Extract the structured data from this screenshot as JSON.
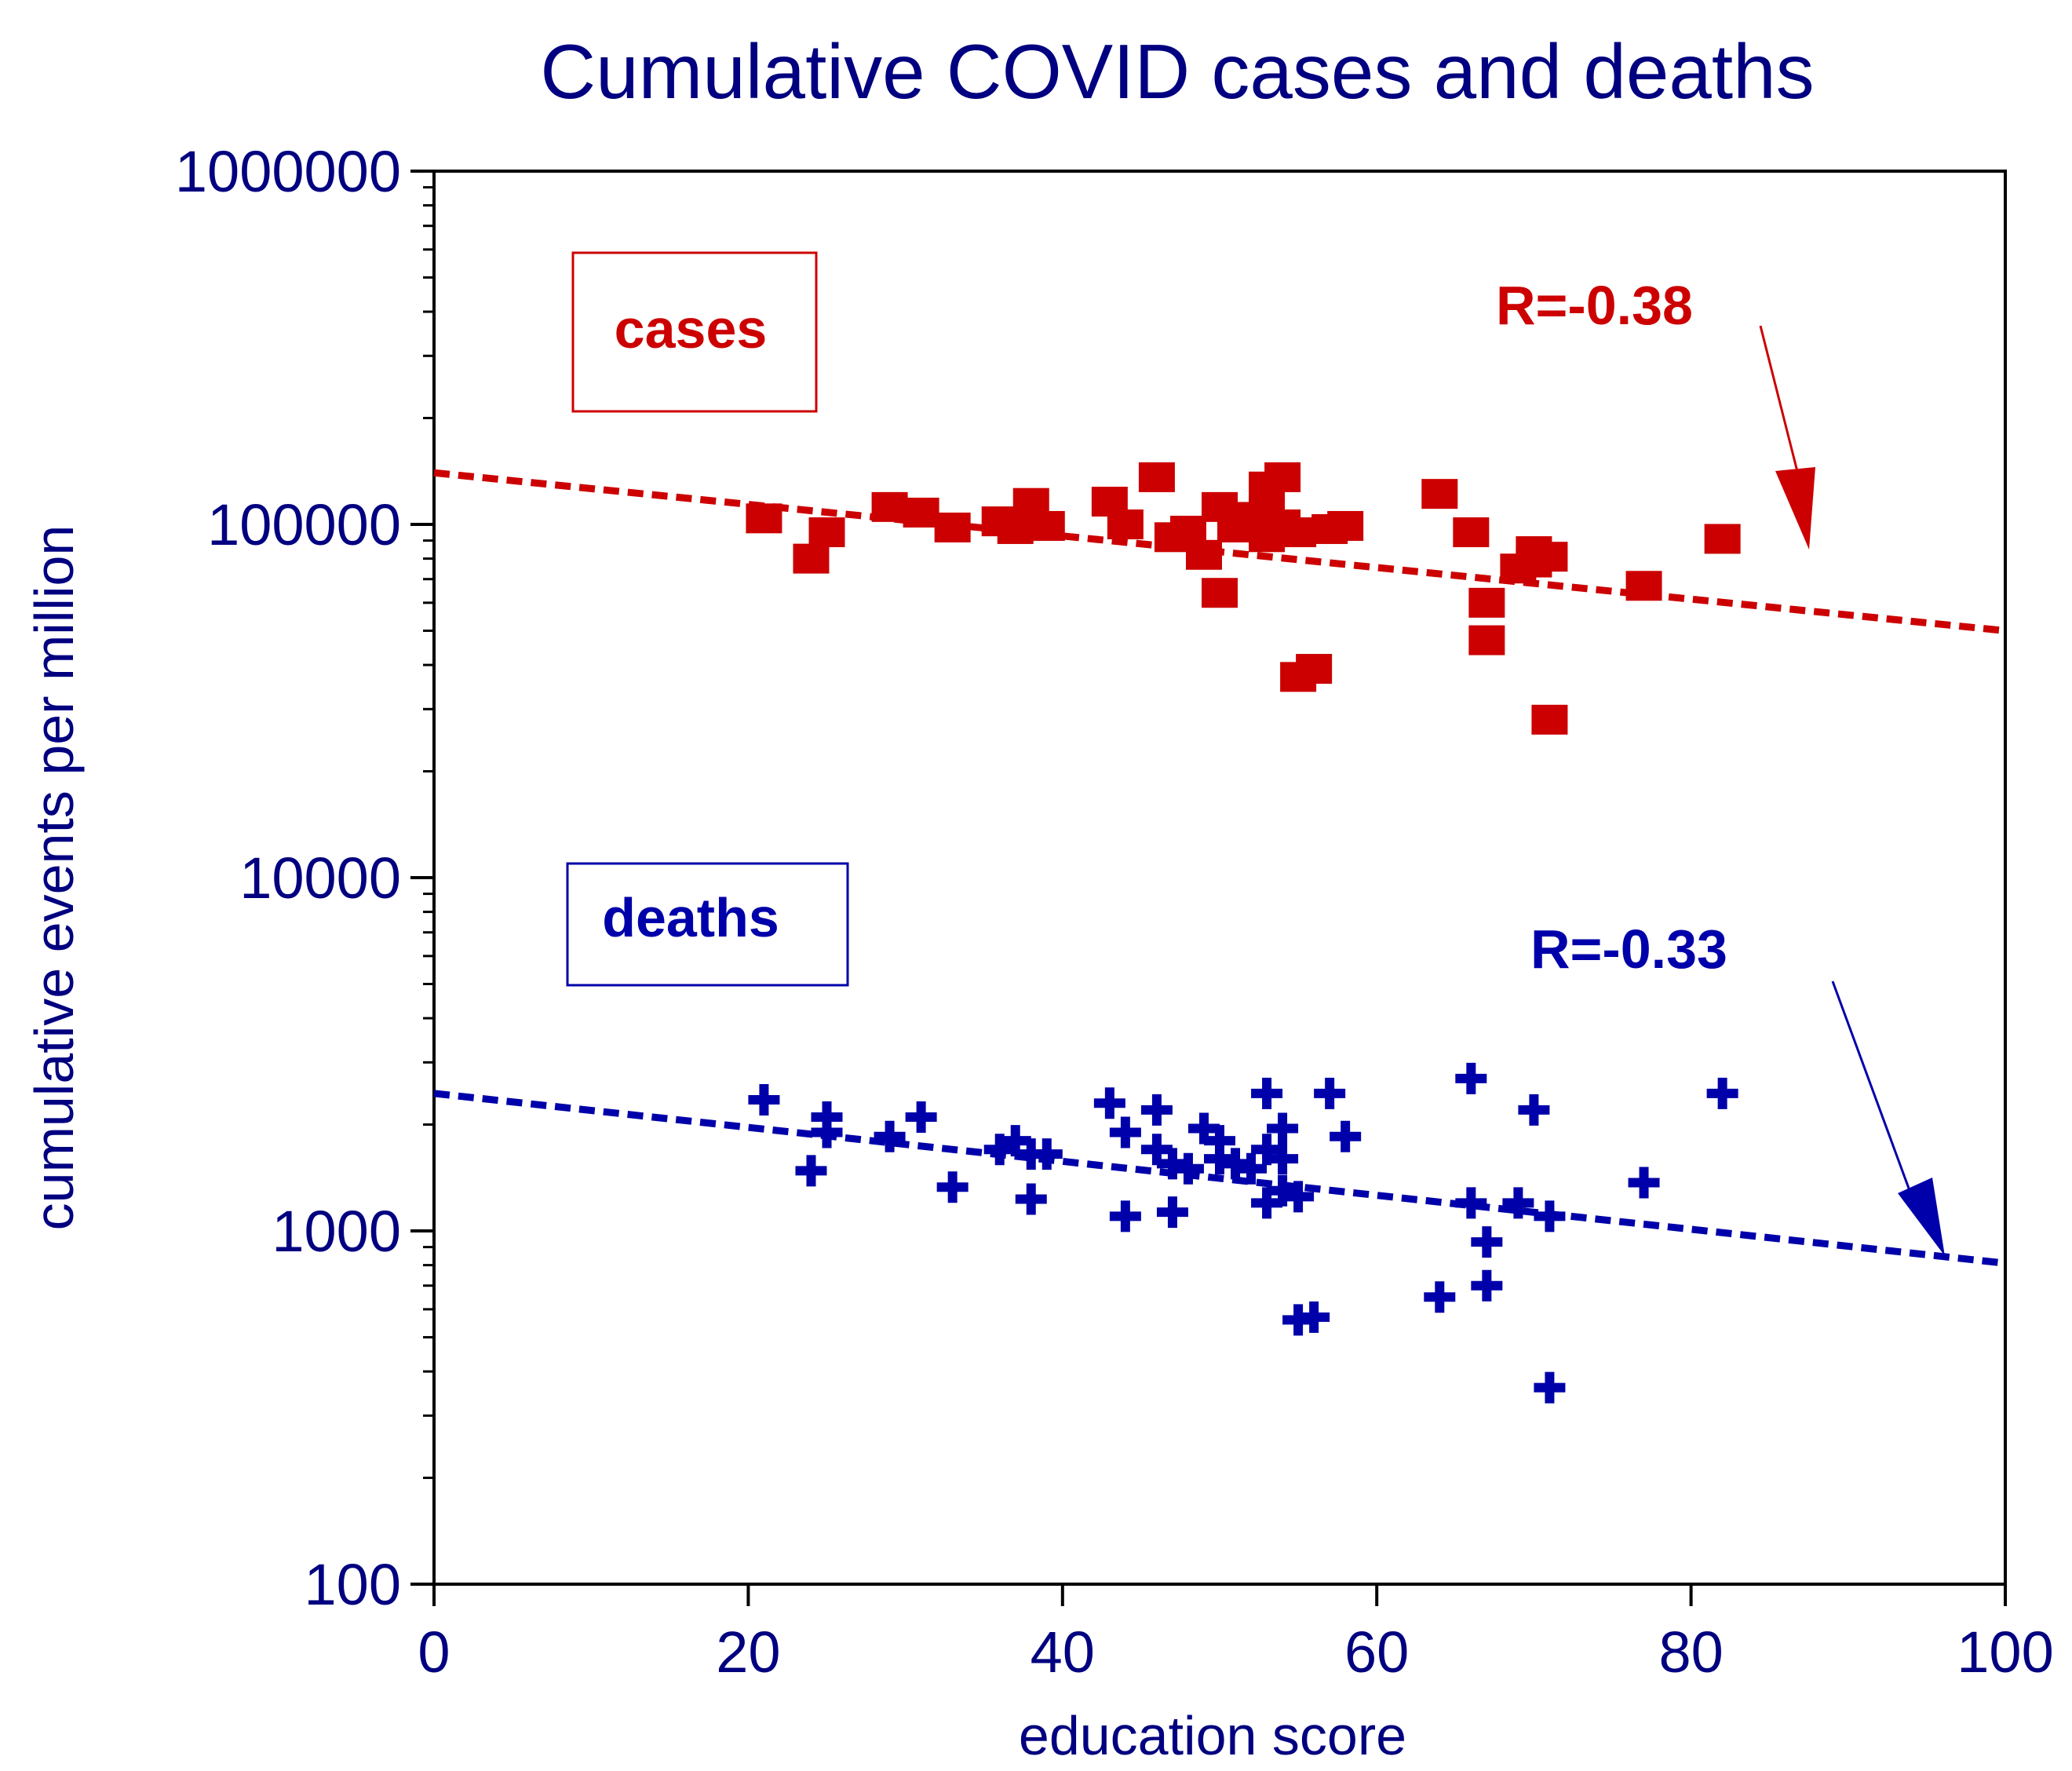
{
  "chart_data": {
    "type": "scatter",
    "title": "Cumulative COVID cases and deaths",
    "xlabel": "education score",
    "ylabel": "cumulative events per million",
    "xlim": [
      0,
      100
    ],
    "ylim": [
      100,
      1000000
    ],
    "yscale": "log",
    "x_ticks": [
      "0",
      "20",
      "40",
      "60",
      "80",
      "100"
    ],
    "y_ticks": [
      "100",
      "1000",
      "10000",
      "100000",
      "1000000"
    ],
    "colors": {
      "cases": "#cc0000",
      "deaths": "#0000aa",
      "text": "#000080",
      "axes": "#000000"
    },
    "series": [
      {
        "name": "cases",
        "marker": "square",
        "points": [
          [
            21,
            104000
          ],
          [
            24,
            80000
          ],
          [
            25,
            95000
          ],
          [
            29,
            112000
          ],
          [
            31,
            108000
          ],
          [
            33,
            98000
          ],
          [
            36,
            102000
          ],
          [
            37,
            97000
          ],
          [
            38,
            115000
          ],
          [
            39,
            99000
          ],
          [
            43,
            116000
          ],
          [
            44,
            100000
          ],
          [
            46,
            136000
          ],
          [
            47,
            92000
          ],
          [
            48,
            96000
          ],
          [
            49,
            82000
          ],
          [
            50,
            112000
          ],
          [
            50,
            64000
          ],
          [
            51,
            98000
          ],
          [
            52,
            105000
          ],
          [
            53,
            128000
          ],
          [
            53,
            108000
          ],
          [
            54,
            136000
          ],
          [
            53,
            92000
          ],
          [
            54,
            100000
          ],
          [
            55,
            95000
          ],
          [
            55,
            37000
          ],
          [
            56,
            39000
          ],
          [
            57,
            97000
          ],
          [
            58,
            99000
          ],
          [
            64,
            122000
          ],
          [
            66,
            95000
          ],
          [
            67,
            60000
          ],
          [
            67,
            47000
          ],
          [
            69,
            75000
          ],
          [
            70,
            84000
          ],
          [
            70,
            78000
          ],
          [
            71,
            81000
          ],
          [
            71,
            28000
          ],
          [
            77,
            67000
          ],
          [
            82,
            91000
          ]
        ],
        "trend": {
          "x": [
            0,
            100
          ],
          "y": [
            140000,
            50000
          ]
        },
        "label": "cases",
        "r_label": "R=-0.38"
      },
      {
        "name": "deaths",
        "marker": "plus",
        "points": [
          [
            21,
            2350
          ],
          [
            24,
            1480
          ],
          [
            25,
            2100
          ],
          [
            25,
            1900
          ],
          [
            29,
            1850
          ],
          [
            31,
            2100
          ],
          [
            33,
            1330
          ],
          [
            36,
            1700
          ],
          [
            37,
            1800
          ],
          [
            38,
            1650
          ],
          [
            38,
            1230
          ],
          [
            39,
            1650
          ],
          [
            43,
            2300
          ],
          [
            44,
            1900
          ],
          [
            44,
            1100
          ],
          [
            46,
            2200
          ],
          [
            46,
            1700
          ],
          [
            47,
            1550
          ],
          [
            47,
            1130
          ],
          [
            48,
            1500
          ],
          [
            49,
            1950
          ],
          [
            50,
            1800
          ],
          [
            50,
            1600
          ],
          [
            51,
            1550
          ],
          [
            52,
            1500
          ],
          [
            53,
            2450
          ],
          [
            53,
            1700
          ],
          [
            53,
            1200
          ],
          [
            54,
            1950
          ],
          [
            54,
            1600
          ],
          [
            54,
            1300
          ],
          [
            55,
            1250
          ],
          [
            55,
            560
          ],
          [
            56,
            570
          ],
          [
            57,
            2450
          ],
          [
            58,
            1850
          ],
          [
            64,
            650
          ],
          [
            66,
            2700
          ],
          [
            66,
            1200
          ],
          [
            67,
            930
          ],
          [
            67,
            700
          ],
          [
            69,
            1200
          ],
          [
            70,
            2200
          ],
          [
            71,
            1100
          ],
          [
            71,
            360
          ],
          [
            77,
            1370
          ],
          [
            82,
            2450
          ]
        ],
        "trend": {
          "x": [
            0,
            100
          ],
          "y": [
            2450,
            810
          ]
        },
        "label": "deaths",
        "r_label": "R=-0.33"
      }
    ]
  }
}
